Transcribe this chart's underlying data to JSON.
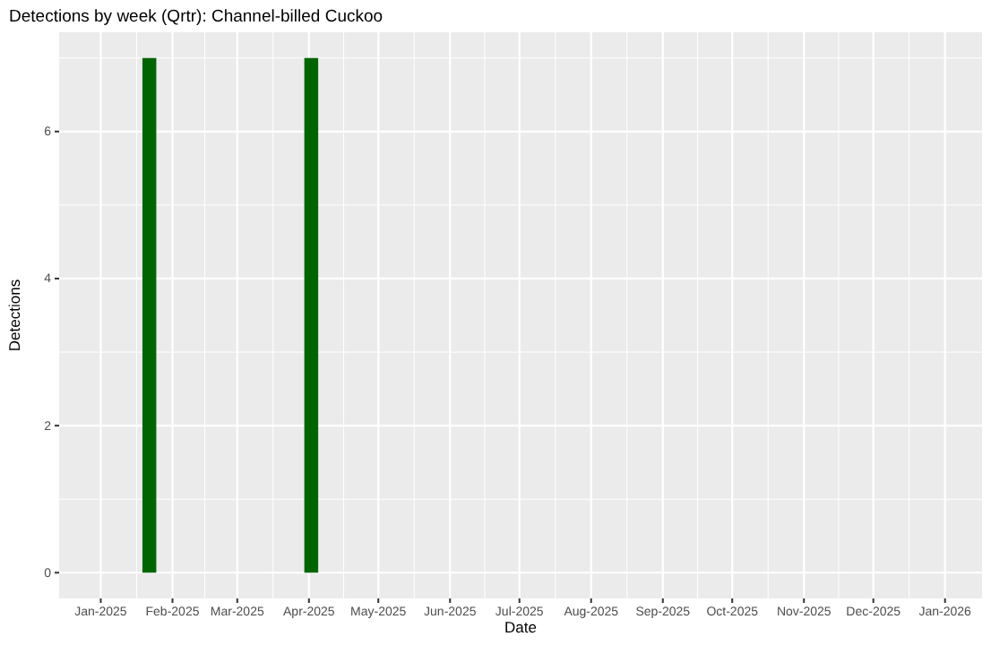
{
  "chart_data": {
    "type": "bar",
    "title": "Detections by week (Qrtr): Channel-billed Cuckoo",
    "xlabel": "Date",
    "ylabel": "Detections",
    "x": [
      "2025-01-22",
      "2025-04-02"
    ],
    "series": [
      {
        "color": "#006400",
        "values": [
          7,
          7
        ]
      }
    ],
    "xlim": [
      "2024-12-14",
      "2026-01-17"
    ],
    "xticks": [
      {
        "value": "2025-01-01",
        "label": "Jan-2025"
      },
      {
        "value": "2025-02-01",
        "label": "Feb-2025"
      },
      {
        "value": "2025-03-01",
        "label": "Mar-2025"
      },
      {
        "value": "2025-04-01",
        "label": "Apr-2025"
      },
      {
        "value": "2025-05-01",
        "label": "May-2025"
      },
      {
        "value": "2025-06-01",
        "label": "Jun-2025"
      },
      {
        "value": "2025-07-01",
        "label": "Jul-2025"
      },
      {
        "value": "2025-08-01",
        "label": "Aug-2025"
      },
      {
        "value": "2025-09-01",
        "label": "Sep-2025"
      },
      {
        "value": "2025-10-01",
        "label": "Oct-2025"
      },
      {
        "value": "2025-11-01",
        "label": "Nov-2025"
      },
      {
        "value": "2025-12-01",
        "label": "Dec-2025"
      },
      {
        "value": "2026-01-01",
        "label": "Jan-2026"
      }
    ],
    "ylim": [
      -0.35,
      7.35
    ],
    "yticks": [
      0,
      2,
      4,
      6
    ],
    "grid": true
  }
}
